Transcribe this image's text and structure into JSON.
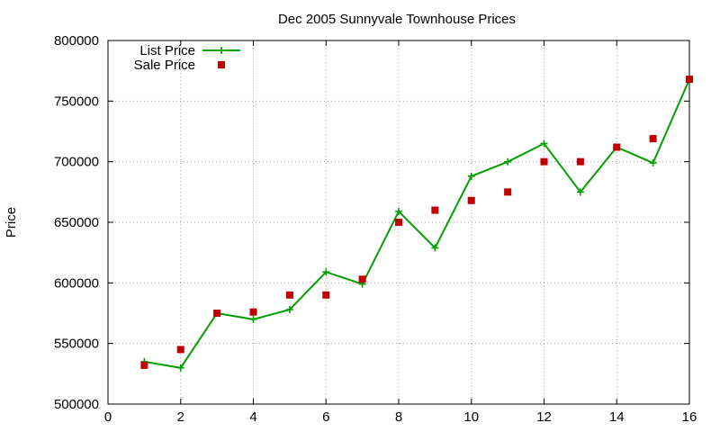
{
  "chart_data": {
    "type": "line",
    "title": "Dec 2005 Sunnyvale Townhouse Prices",
    "xlabel": "",
    "ylabel": "Price",
    "xlim": [
      0,
      16
    ],
    "ylim": [
      500000,
      800000
    ],
    "xticks": [
      0,
      2,
      4,
      6,
      8,
      10,
      12,
      14,
      16
    ],
    "yticks": [
      500000,
      550000,
      600000,
      650000,
      700000,
      750000,
      800000
    ],
    "grid": true,
    "legend_position": "top-left",
    "series": [
      {
        "name": "List Price",
        "style": "line-with-plus-markers",
        "color": "#00a000",
        "x": [
          1,
          2,
          3,
          4,
          5,
          6,
          7,
          8,
          9,
          10,
          11,
          12,
          13,
          14,
          15,
          16
        ],
        "y": [
          535000,
          529900,
          575000,
          569900,
          578000,
          609000,
          599000,
          659000,
          628900,
          688000,
          699900,
          715000,
          675000,
          712000,
          699000,
          768000
        ]
      },
      {
        "name": "Sale Price",
        "style": "square-markers",
        "color": "#c00000",
        "x": [
          1,
          2,
          3,
          4,
          5,
          6,
          7,
          8,
          9,
          10,
          11,
          12,
          13,
          14,
          15,
          16
        ],
        "y": [
          532000,
          545000,
          575000,
          576000,
          590000,
          590000,
          603000,
          650000,
          660000,
          668000,
          675000,
          700000,
          700000,
          712000,
          719000,
          768000
        ]
      }
    ]
  }
}
